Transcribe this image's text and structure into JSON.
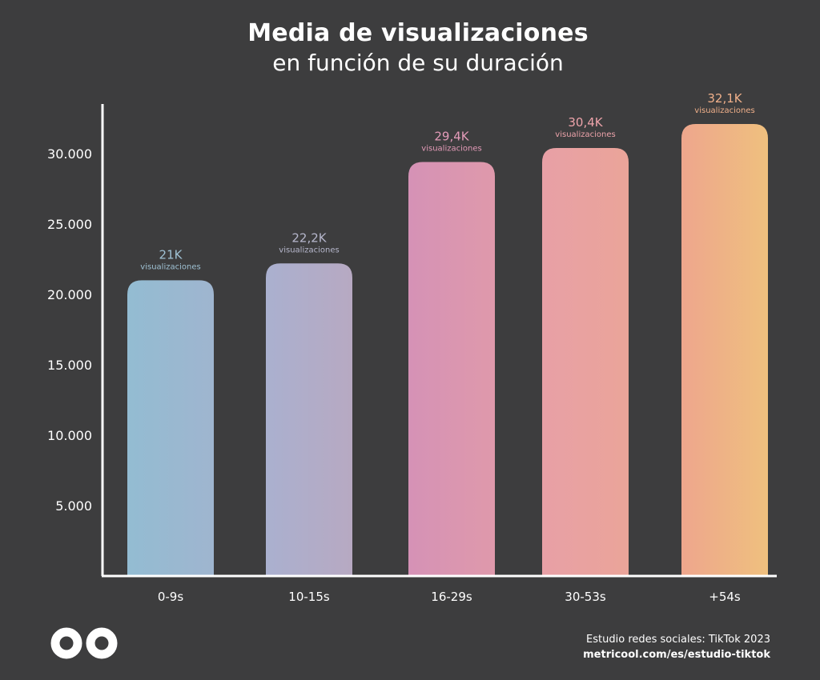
{
  "header": {
    "title": "Media de visualizaciones",
    "subtitle": "en función de su duración"
  },
  "chart_data": {
    "type": "bar",
    "title": "Media de visualizaciones",
    "subtitle": "en función de su duración",
    "xlabel": "",
    "ylabel": "",
    "categories": [
      "0-9s",
      "10-15s",
      "16-29s",
      "30-53s",
      "+54s"
    ],
    "values": [
      21000,
      22200,
      29400,
      30400,
      32100
    ],
    "data_labels": [
      "21K",
      "22,2K",
      "29,4K",
      "30,4K",
      "32,1K"
    ],
    "data_label_unit": "visualizaciones",
    "yticks": [
      5000,
      10000,
      15000,
      20000,
      25000,
      30000
    ],
    "ytick_labels": [
      "5.000",
      "10.000",
      "15.000",
      "20.000",
      "25.000",
      "30.000"
    ],
    "ylim": [
      0,
      33000
    ],
    "grid": false,
    "bar_colors": [
      [
        "#93bcd2",
        "#9fb5cf"
      ],
      [
        "#aab0cf",
        "#b7a9c2"
      ],
      [
        "#d592b6",
        "#df99ab"
      ],
      [
        "#e8a0a6",
        "#eaa499"
      ],
      [
        "#eea68d",
        "#efc07e"
      ]
    ],
    "label_colors": [
      "#9fc1d3",
      "#b6b7cc",
      "#e39bb8",
      "#eda3aa",
      "#f0b08a"
    ]
  },
  "footer": {
    "source": "Estudio redes sociales: TikTok 2023",
    "url": "metricool.com/es/estudio-tiktok"
  },
  "logo": {
    "icon": "infinity-logo-icon",
    "color": "#ffffff"
  },
  "colors": {
    "background": "#3d3d3e",
    "axis": "#ffffff",
    "text": "#ffffff"
  }
}
